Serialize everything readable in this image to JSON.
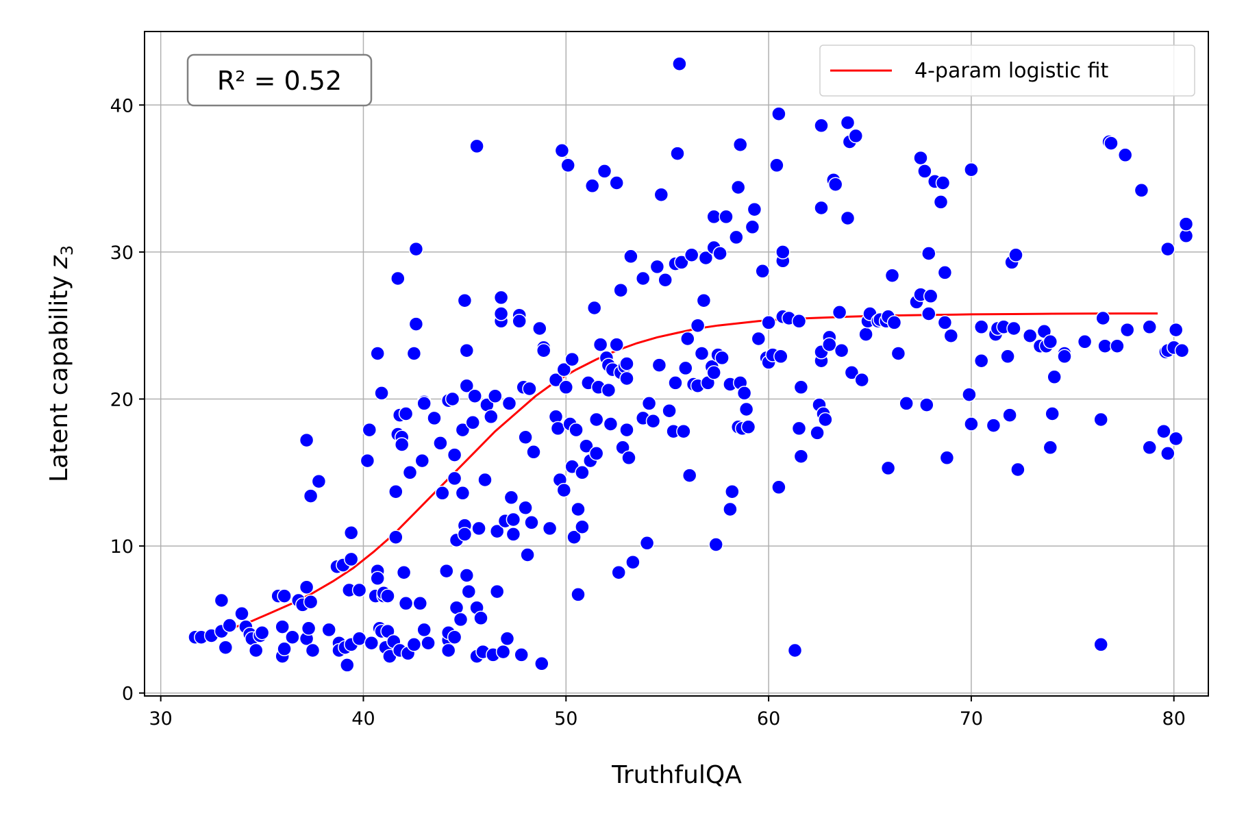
{
  "chart_data": {
    "type": "scatter",
    "xlabel": "TruthfulQA",
    "ylabel": "Latent capability",
    "ylabel_symbol": "z",
    "ylabel_subscript": "3",
    "xlim": [
      29.2,
      81.7
    ],
    "ylim": [
      -0.2,
      45
    ],
    "xticks": [
      30,
      40,
      50,
      60,
      70,
      80
    ],
    "yticks": [
      0,
      10,
      20,
      30,
      40
    ],
    "grid": true,
    "annotation": "R² = 0.52",
    "annotation_position": "top-left",
    "legend_position": "top-right",
    "point_color": "#0000ff",
    "fit": {
      "name": "4-param logistic fit",
      "color": "#ff0000",
      "x_range": [
        31.6,
        79.2
      ],
      "points": [
        [
          31.6,
          3.8
        ],
        [
          32.5,
          4.0
        ],
        [
          33.5,
          4.4
        ],
        [
          34.5,
          4.9
        ],
        [
          35.5,
          5.5
        ],
        [
          36.5,
          6.1
        ],
        [
          37.5,
          6.8
        ],
        [
          38.5,
          7.6
        ],
        [
          39.5,
          8.5
        ],
        [
          40.5,
          9.6
        ],
        [
          41.5,
          10.8
        ],
        [
          42.5,
          12.2
        ],
        [
          43.5,
          13.6
        ],
        [
          44.5,
          15.0
        ],
        [
          45.5,
          16.4
        ],
        [
          46.5,
          17.8
        ],
        [
          47.5,
          19.0
        ],
        [
          48.5,
          20.2
        ],
        [
          49.5,
          21.2
        ],
        [
          50.5,
          22.0
        ],
        [
          51.5,
          22.7
        ],
        [
          52.5,
          23.3
        ],
        [
          53.5,
          23.8
        ],
        [
          54.5,
          24.2
        ],
        [
          55.5,
          24.5
        ],
        [
          56.5,
          24.8
        ],
        [
          57.5,
          25.0
        ],
        [
          58.5,
          25.15
        ],
        [
          59.5,
          25.3
        ],
        [
          60.5,
          25.4
        ],
        [
          62,
          25.5
        ],
        [
          64,
          25.6
        ],
        [
          66,
          25.68
        ],
        [
          68,
          25.72
        ],
        [
          70,
          25.76
        ],
        [
          72,
          25.78
        ],
        [
          74,
          25.8
        ],
        [
          76,
          25.81
        ],
        [
          79.2,
          25.82
        ]
      ]
    },
    "points": [
      [
        31.7,
        3.8
      ],
      [
        32.0,
        3.8
      ],
      [
        32.5,
        3.9
      ],
      [
        33.0,
        4.2
      ],
      [
        33.0,
        6.3
      ],
      [
        33.2,
        3.1
      ],
      [
        33.4,
        4.6
      ],
      [
        34.0,
        5.4
      ],
      [
        34.2,
        4.5
      ],
      [
        34.4,
        4.0
      ],
      [
        34.5,
        3.7
      ],
      [
        34.7,
        2.9
      ],
      [
        34.9,
        3.9
      ],
      [
        35.0,
        4.1
      ],
      [
        35.8,
        6.6
      ],
      [
        36.0,
        4.5
      ],
      [
        36.0,
        2.5
      ],
      [
        36.1,
        3.0
      ],
      [
        36.1,
        6.6
      ],
      [
        36.5,
        3.8
      ],
      [
        36.8,
        6.3
      ],
      [
        37.0,
        6.0
      ],
      [
        37.2,
        7.2
      ],
      [
        37.2,
        3.7
      ],
      [
        37.2,
        17.2
      ],
      [
        37.3,
        4.4
      ],
      [
        37.4,
        13.4
      ],
      [
        37.4,
        6.2
      ],
      [
        37.5,
        2.9
      ],
      [
        37.8,
        14.4
      ],
      [
        38.3,
        4.3
      ],
      [
        38.7,
        8.6
      ],
      [
        38.8,
        3.4
      ],
      [
        38.8,
        2.9
      ],
      [
        39.0,
        8.7
      ],
      [
        39.1,
        3.1
      ],
      [
        39.2,
        1.9
      ],
      [
        39.3,
        7.0
      ],
      [
        39.4,
        3.3
      ],
      [
        39.4,
        9.1
      ],
      [
        39.4,
        10.9
      ],
      [
        39.8,
        3.7
      ],
      [
        39.8,
        7.0
      ],
      [
        40.2,
        15.8
      ],
      [
        40.3,
        17.9
      ],
      [
        40.4,
        3.4
      ],
      [
        40.6,
        6.6
      ],
      [
        40.7,
        8.3
      ],
      [
        40.7,
        7.8
      ],
      [
        40.7,
        23.1
      ],
      [
        40.8,
        4.4
      ],
      [
        40.9,
        4.2
      ],
      [
        40.9,
        20.4
      ],
      [
        41.0,
        6.6
      ],
      [
        41.0,
        6.8
      ],
      [
        41.1,
        3.1
      ],
      [
        41.2,
        6.6
      ],
      [
        41.2,
        4.2
      ],
      [
        41.3,
        2.5
      ],
      [
        41.5,
        3.5
      ],
      [
        41.6,
        10.6
      ],
      [
        41.6,
        13.7
      ],
      [
        41.7,
        17.6
      ],
      [
        41.7,
        28.2
      ],
      [
        41.8,
        18.9
      ],
      [
        41.8,
        2.9
      ],
      [
        41.9,
        17.4
      ],
      [
        41.9,
        16.9
      ],
      [
        42.0,
        8.2
      ],
      [
        42.1,
        6.1
      ],
      [
        42.1,
        19.0
      ],
      [
        42.2,
        2.7
      ],
      [
        42.3,
        15.0
      ],
      [
        42.5,
        3.3
      ],
      [
        42.5,
        23.1
      ],
      [
        42.6,
        25.1
      ],
      [
        42.6,
        30.2
      ],
      [
        42.8,
        6.1
      ],
      [
        42.9,
        15.8
      ],
      [
        43.0,
        19.8
      ],
      [
        43.0,
        4.3
      ],
      [
        43.0,
        19.7
      ],
      [
        43.2,
        3.4
      ],
      [
        43.5,
        18.7
      ],
      [
        43.8,
        17.0
      ],
      [
        43.9,
        13.6
      ],
      [
        44.1,
        8.3
      ],
      [
        44.2,
        3.6
      ],
      [
        44.2,
        4.1
      ],
      [
        44.2,
        2.9
      ],
      [
        44.2,
        19.9
      ],
      [
        44.4,
        20.0
      ],
      [
        44.5,
        3.8
      ],
      [
        44.5,
        14.6
      ],
      [
        44.5,
        16.2
      ],
      [
        44.6,
        10.4
      ],
      [
        44.6,
        5.8
      ],
      [
        44.8,
        5.0
      ],
      [
        44.9,
        17.9
      ],
      [
        44.9,
        13.6
      ],
      [
        45.0,
        26.7
      ],
      [
        45.0,
        11.4
      ],
      [
        45.0,
        10.8
      ],
      [
        45.1,
        8.0
      ],
      [
        45.1,
        20.9
      ],
      [
        45.1,
        23.3
      ],
      [
        45.2,
        6.9
      ],
      [
        45.4,
        18.4
      ],
      [
        45.5,
        20.2
      ],
      [
        45.6,
        37.2
      ],
      [
        45.6,
        2.5
      ],
      [
        45.6,
        5.8
      ],
      [
        45.7,
        11.2
      ],
      [
        45.8,
        5.1
      ],
      [
        45.9,
        2.8
      ],
      [
        46.0,
        14.5
      ],
      [
        46.1,
        19.6
      ],
      [
        46.3,
        18.8
      ],
      [
        46.4,
        2.6
      ],
      [
        46.5,
        20.2
      ],
      [
        46.6,
        6.9
      ],
      [
        46.6,
        11.0
      ],
      [
        46.8,
        26.9
      ],
      [
        46.8,
        25.3
      ],
      [
        46.8,
        25.8
      ],
      [
        46.9,
        2.8
      ],
      [
        47.0,
        11.7
      ],
      [
        47.1,
        3.7
      ],
      [
        47.2,
        19.7
      ],
      [
        47.3,
        13.3
      ],
      [
        47.4,
        10.8
      ],
      [
        47.4,
        11.8
      ],
      [
        47.7,
        25.7
      ],
      [
        47.7,
        25.3
      ],
      [
        47.8,
        2.6
      ],
      [
        47.9,
        20.8
      ],
      [
        48.0,
        12.6
      ],
      [
        48.0,
        17.4
      ],
      [
        48.1,
        9.4
      ],
      [
        48.2,
        20.7
      ],
      [
        48.3,
        11.6
      ],
      [
        48.4,
        16.4
      ],
      [
        48.7,
        24.8
      ],
      [
        48.8,
        2.0
      ],
      [
        48.9,
        23.5
      ],
      [
        48.9,
        23.3
      ],
      [
        49.2,
        11.2
      ],
      [
        49.5,
        18.8
      ],
      [
        49.5,
        21.3
      ],
      [
        49.6,
        18.0
      ],
      [
        49.7,
        14.5
      ],
      [
        49.8,
        36.9
      ],
      [
        49.9,
        13.8
      ],
      [
        49.9,
        22.0
      ],
      [
        50.0,
        20.8
      ],
      [
        50.1,
        35.9
      ],
      [
        50.2,
        18.3
      ],
      [
        50.3,
        22.7
      ],
      [
        50.3,
        15.4
      ],
      [
        50.4,
        10.6
      ],
      [
        50.5,
        17.9
      ],
      [
        50.6,
        12.5
      ],
      [
        50.6,
        6.7
      ],
      [
        50.8,
        11.3
      ],
      [
        50.8,
        15.0
      ],
      [
        51.0,
        16.8
      ],
      [
        51.1,
        21.1
      ],
      [
        51.2,
        15.8
      ],
      [
        51.3,
        34.5
      ],
      [
        51.4,
        26.2
      ],
      [
        51.5,
        18.6
      ],
      [
        51.5,
        16.3
      ],
      [
        51.6,
        20.8
      ],
      [
        51.7,
        23.7
      ],
      [
        51.9,
        35.5
      ],
      [
        52.0,
        22.8
      ],
      [
        52.1,
        22.3
      ],
      [
        52.1,
        20.6
      ],
      [
        52.2,
        18.3
      ],
      [
        52.3,
        22.0
      ],
      [
        52.5,
        23.7
      ],
      [
        52.5,
        34.7
      ],
      [
        52.6,
        8.2
      ],
      [
        52.7,
        27.4
      ],
      [
        52.7,
        21.8
      ],
      [
        52.8,
        16.7
      ],
      [
        52.9,
        22.2
      ],
      [
        53.0,
        17.9
      ],
      [
        53.0,
        22.4
      ],
      [
        53.0,
        21.4
      ],
      [
        53.1,
        16.0
      ],
      [
        53.2,
        29.7
      ],
      [
        53.3,
        8.9
      ],
      [
        53.8,
        28.2
      ],
      [
        53.8,
        18.7
      ],
      [
        54.0,
        10.2
      ],
      [
        54.1,
        19.7
      ],
      [
        54.3,
        18.5
      ],
      [
        54.5,
        29.0
      ],
      [
        54.6,
        22.3
      ],
      [
        54.7,
        33.9
      ],
      [
        54.9,
        28.1
      ],
      [
        55.1,
        19.2
      ],
      [
        55.3,
        17.8
      ],
      [
        55.4,
        21.1
      ],
      [
        55.4,
        29.2
      ],
      [
        55.5,
        36.7
      ],
      [
        55.6,
        42.8
      ],
      [
        55.7,
        29.3
      ],
      [
        55.8,
        17.8
      ],
      [
        55.9,
        22.1
      ],
      [
        56.0,
        24.1
      ],
      [
        56.1,
        14.8
      ],
      [
        56.2,
        29.8
      ],
      [
        56.3,
        21.0
      ],
      [
        56.5,
        20.9
      ],
      [
        56.5,
        25.0
      ],
      [
        56.7,
        23.1
      ],
      [
        56.8,
        26.7
      ],
      [
        56.9,
        29.6
      ],
      [
        57.0,
        21.1
      ],
      [
        57.2,
        22.2
      ],
      [
        57.3,
        21.8
      ],
      [
        57.3,
        32.4
      ],
      [
        57.3,
        30.3
      ],
      [
        57.4,
        10.1
      ],
      [
        57.5,
        23.0
      ],
      [
        57.6,
        29.9
      ],
      [
        57.7,
        22.8
      ],
      [
        57.9,
        32.4
      ],
      [
        58.1,
        12.5
      ],
      [
        58.1,
        21.0
      ],
      [
        58.2,
        13.7
      ],
      [
        58.4,
        31.0
      ],
      [
        58.5,
        18.1
      ],
      [
        58.5,
        34.4
      ],
      [
        58.6,
        37.3
      ],
      [
        58.6,
        21.1
      ],
      [
        58.7,
        18.0
      ],
      [
        58.8,
        20.4
      ],
      [
        58.9,
        19.3
      ],
      [
        59.0,
        18.1
      ],
      [
        59.2,
        31.7
      ],
      [
        59.3,
        32.9
      ],
      [
        59.5,
        24.1
      ],
      [
        59.7,
        28.7
      ],
      [
        59.9,
        22.8
      ],
      [
        60.0,
        22.5
      ],
      [
        60.0,
        25.2
      ],
      [
        60.2,
        23.0
      ],
      [
        60.4,
        35.9
      ],
      [
        60.5,
        39.4
      ],
      [
        60.5,
        14.0
      ],
      [
        60.6,
        22.9
      ],
      [
        60.7,
        29.4
      ],
      [
        60.7,
        30.0
      ],
      [
        60.7,
        25.6
      ],
      [
        61.0,
        25.5
      ],
      [
        61.3,
        2.9
      ],
      [
        61.5,
        25.3
      ],
      [
        61.5,
        18.0
      ],
      [
        61.6,
        16.1
      ],
      [
        61.6,
        20.8
      ],
      [
        62.4,
        17.7
      ],
      [
        62.5,
        19.6
      ],
      [
        62.6,
        22.6
      ],
      [
        62.6,
        23.2
      ],
      [
        62.6,
        33.0
      ],
      [
        62.6,
        38.6
      ],
      [
        62.7,
        19.0
      ],
      [
        62.8,
        18.6
      ],
      [
        63.0,
        24.2
      ],
      [
        63.0,
        23.7
      ],
      [
        63.2,
        34.9
      ],
      [
        63.3,
        34.6
      ],
      [
        63.5,
        25.9
      ],
      [
        63.6,
        23.3
      ],
      [
        63.9,
        32.3
      ],
      [
        63.9,
        38.8
      ],
      [
        64.0,
        37.5
      ],
      [
        64.1,
        21.8
      ],
      [
        64.3,
        37.9
      ],
      [
        64.6,
        21.3
      ],
      [
        64.8,
        24.4
      ],
      [
        64.9,
        25.3
      ],
      [
        65.0,
        25.8
      ],
      [
        65.4,
        25.3
      ],
      [
        65.5,
        25.4
      ],
      [
        65.8,
        25.3
      ],
      [
        65.9,
        25.6
      ],
      [
        65.9,
        15.3
      ],
      [
        66.1,
        28.4
      ],
      [
        66.2,
        25.2
      ],
      [
        66.4,
        23.1
      ],
      [
        66.8,
        19.7
      ],
      [
        67.3,
        26.6
      ],
      [
        67.5,
        27.1
      ],
      [
        67.5,
        36.4
      ],
      [
        67.7,
        35.5
      ],
      [
        67.8,
        19.6
      ],
      [
        67.9,
        29.9
      ],
      [
        67.9,
        25.8
      ],
      [
        68.0,
        27.0
      ],
      [
        68.2,
        34.8
      ],
      [
        68.5,
        33.4
      ],
      [
        68.6,
        34.7
      ],
      [
        68.7,
        28.6
      ],
      [
        68.7,
        25.2
      ],
      [
        68.8,
        16.0
      ],
      [
        69.0,
        24.3
      ],
      [
        69.9,
        20.3
      ],
      [
        70.0,
        18.3
      ],
      [
        70.0,
        35.6
      ],
      [
        70.5,
        22.6
      ],
      [
        70.5,
        24.9
      ],
      [
        71.1,
        18.2
      ],
      [
        71.2,
        24.4
      ],
      [
        71.3,
        24.8
      ],
      [
        71.6,
        24.9
      ],
      [
        71.8,
        22.9
      ],
      [
        71.9,
        18.9
      ],
      [
        72.0,
        29.3
      ],
      [
        72.1,
        24.8
      ],
      [
        72.2,
        29.8
      ],
      [
        72.3,
        15.2
      ],
      [
        72.9,
        24.3
      ],
      [
        73.4,
        23.6
      ],
      [
        73.6,
        24.6
      ],
      [
        73.7,
        23.6
      ],
      [
        73.9,
        23.9
      ],
      [
        73.9,
        16.7
      ],
      [
        74.0,
        19.0
      ],
      [
        74.1,
        21.5
      ],
      [
        74.6,
        23.1
      ],
      [
        74.6,
        22.9
      ],
      [
        75.6,
        23.9
      ],
      [
        76.4,
        18.6
      ],
      [
        76.4,
        3.3
      ],
      [
        76.5,
        25.5
      ],
      [
        76.6,
        23.6
      ],
      [
        76.8,
        37.5
      ],
      [
        76.9,
        37.4
      ],
      [
        77.2,
        23.6
      ],
      [
        77.6,
        36.6
      ],
      [
        77.7,
        24.7
      ],
      [
        78.4,
        34.2
      ],
      [
        78.8,
        16.7
      ],
      [
        78.8,
        24.9
      ],
      [
        79.5,
        17.8
      ],
      [
        79.6,
        23.2
      ],
      [
        79.7,
        23.3
      ],
      [
        79.7,
        16.3
      ],
      [
        79.7,
        30.2
      ],
      [
        80.0,
        23.5
      ],
      [
        80.1,
        17.3
      ],
      [
        80.1,
        24.7
      ],
      [
        80.4,
        23.3
      ],
      [
        80.6,
        31.1
      ],
      [
        80.6,
        31.9
      ]
    ]
  }
}
